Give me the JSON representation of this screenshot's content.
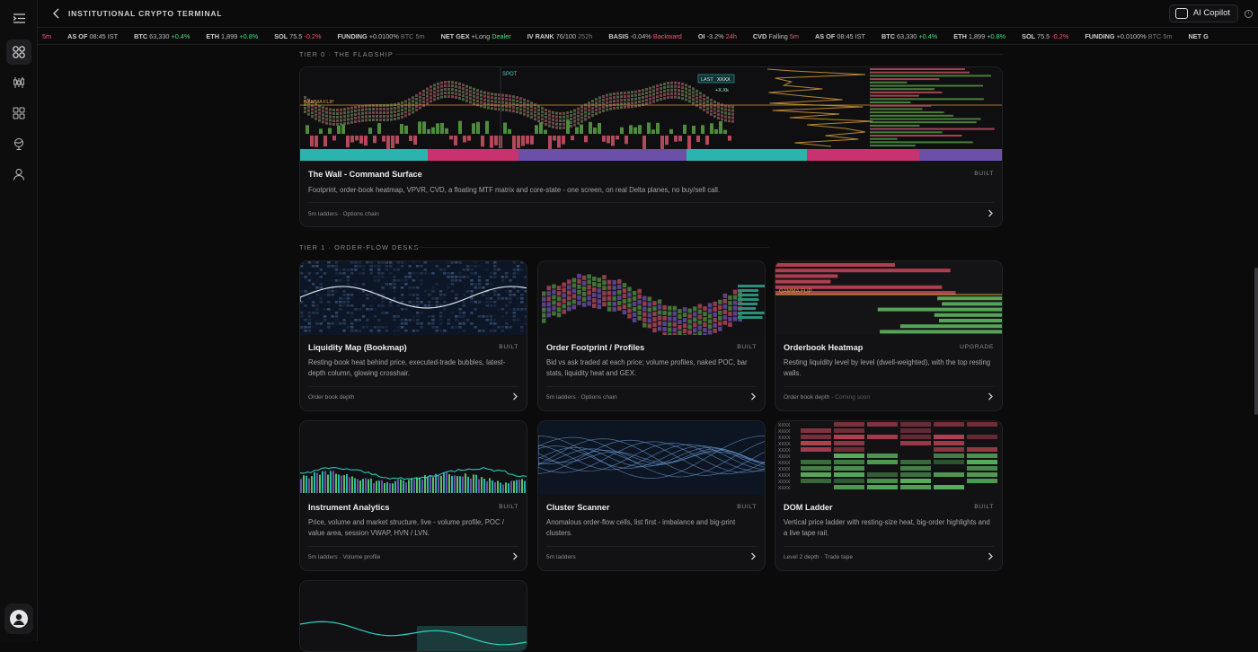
{
  "header": {
    "title": "INSTITUTIONAL CRYPTO TERMINAL",
    "copilot_label": "AI Copilot",
    "info_glyph": "i"
  },
  "ticker": [
    {
      "label": "5m",
      "value": "",
      "value_class": "dn"
    },
    {
      "label": "AS OF",
      "value": "08:45 IST",
      "value_class": "v"
    },
    {
      "label": "BTC",
      "value": "63,330",
      "value_class": "v",
      "change": "+0.4%",
      "change_class": "up"
    },
    {
      "label": "ETH",
      "value": "1,899",
      "value_class": "v",
      "change": "+0.8%",
      "change_class": "up"
    },
    {
      "label": "SOL",
      "value": "75.5",
      "value_class": "v",
      "change": "-0.2%",
      "change_class": "dn"
    },
    {
      "label": "FUNDING",
      "value": "+0.0100%",
      "value_class": "v",
      "change": "BTC 5m",
      "change_class": "mut"
    },
    {
      "label": "NET GEX",
      "value": "+Long",
      "value_class": "v",
      "change": "Dealer",
      "change_class": "up"
    },
    {
      "label": "IV RANK",
      "value": "76/100",
      "value_class": "v",
      "change": "252h",
      "change_class": "mut"
    },
    {
      "label": "BASIS",
      "value": "-0.04%",
      "value_class": "v",
      "change": "Backward",
      "change_class": "dn"
    },
    {
      "label": "OI",
      "value": "-3.2%",
      "value_class": "v",
      "change": "24h",
      "change_class": "dn"
    },
    {
      "label": "CVD",
      "value": "Falling",
      "value_class": "v",
      "change": "5m",
      "change_class": "dn"
    },
    {
      "label": "AS OF",
      "value": "08:45 IST",
      "value_class": "v"
    },
    {
      "label": "BTC",
      "value": "63,330",
      "value_class": "v",
      "change": "+0.4%",
      "change_class": "up"
    },
    {
      "label": "ETH",
      "value": "1,899",
      "value_class": "v",
      "change": "+0.8%",
      "change_class": "up"
    },
    {
      "label": "SOL",
      "value": "75.5",
      "value_class": "v",
      "change": "-0.2%",
      "change_class": "dn"
    },
    {
      "label": "FUNDING",
      "value": "+0.0100%",
      "value_class": "v",
      "change": "BTC 5m",
      "change_class": "mut"
    },
    {
      "label": "NET G",
      "value": "",
      "value_class": "v"
    }
  ],
  "sections": {
    "tier0": "TIER 0 · THE FLAGSHIP",
    "tier1": "TIER 1 · ORDER-FLOW DESKS"
  },
  "flagship": {
    "title": "The Wall - Command Surface",
    "badge": "BUILT",
    "desc": "Footprint, order-book heatmap, VPVR, CVD, a floating MTF matrix and core-state - one screen, on real Delta planes, no buy/sell call.",
    "foot": "5m ladders · Options chain",
    "labels": {
      "spot": "SPOT",
      "last": "LAST",
      "xxxx": "XXXX",
      "xk": "+X.Xk",
      "gamma": "GAMMA FLIP"
    }
  },
  "cards": [
    {
      "title": "Liquidity Map (Bookmap)",
      "badge": "BUILT",
      "desc": "Resting-book heat behind price, executed-trade bubbles, latest-depth column, glowing crosshair.",
      "foot": "Order book depth",
      "foot2": ""
    },
    {
      "title": "Order Footprint / Profiles",
      "badge": "BUILT",
      "desc": "Bid vs ask traded at each price; volume profiles, naked POC, bar stats, liquidity heat and GEX.",
      "foot": "5m ladders · Options chain",
      "foot2": ""
    },
    {
      "title": "Orderbook Heatmap",
      "badge": "UPGRADE",
      "desc": "Resting liquidity level by level (dwell-weighted), with the top resting walls.",
      "foot": "Order book depth ·",
      "foot2": "Coming soon",
      "label": "GAMMA FLIP"
    },
    {
      "title": "Instrument Analytics",
      "badge": "BUILT",
      "desc": "Price, volume and market structure, live - volume profile, POC / value area, session VWAP, HVN / LVN.",
      "foot": "5m ladders · Volume profile",
      "foot2": ""
    },
    {
      "title": "Cluster Scanner",
      "badge": "BUILT",
      "desc": "Anomalous order-flow cells, list first - imbalance and big-print clusters.",
      "foot": "5m ladders",
      "foot2": ""
    },
    {
      "title": "DOM Ladder",
      "badge": "BUILT",
      "desc": "Vertical price ladder with resting-size heat, big-order highlights and a live tape rail.",
      "foot": "Level 2 depth · Trade tape",
      "foot2": "",
      "ladder_label": "XXXX"
    }
  ],
  "colors": {
    "teal": "#2bb3ad",
    "pink": "#c8336f",
    "purple": "#6b4fa8",
    "green": "#5fbf62",
    "red": "#c9475b",
    "orange": "#e0a23a"
  }
}
